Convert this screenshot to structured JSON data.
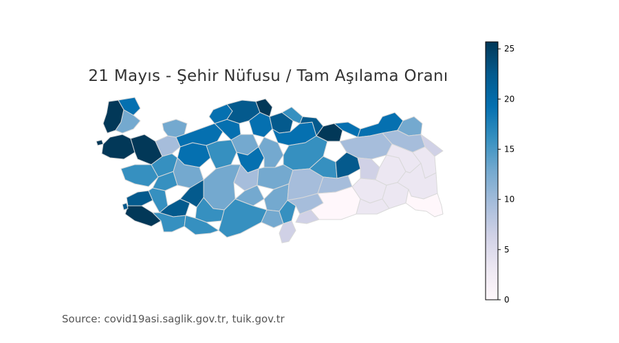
{
  "title": "21 Mayıs - Şehir Nüfusu / Tam Aşılama Oranı",
  "source": "Source: covid19asi.saglik.gov.tr, tuik.gov.tr",
  "colorbar": {
    "min": 0,
    "max": 25.7,
    "ticks": [
      "0",
      "5",
      "10",
      "15",
      "20",
      "25"
    ],
    "tick_values": [
      0,
      5,
      10,
      15,
      20,
      25
    ],
    "colormap": "PuBu",
    "stops": [
      "#fff7fb",
      "#ece7f2",
      "#d0d1e6",
      "#a6bddb",
      "#74a9cf",
      "#3690c0",
      "#0570b0",
      "#045a8d",
      "#023858"
    ]
  }
}
